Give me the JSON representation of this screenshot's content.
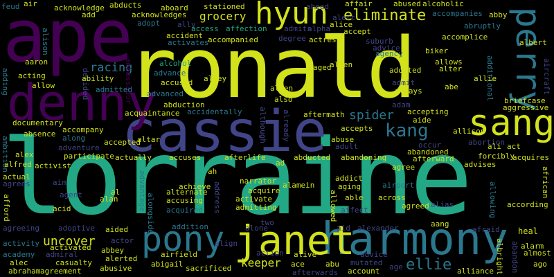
{
  "colors": {
    "background": "#000000",
    "lime": "#d2e21b",
    "green": "#22a884",
    "teal": "#2a788e",
    "blue": "#414487",
    "purple": "#440154",
    "navy": "#2a2a6c"
  },
  "words": {
    "lorraine": "lorraine",
    "ronald": "ronald",
    "ape": "ape",
    "cassie": "cassie",
    "denny": "denny",
    "harmony": "harmony",
    "janet": "janet",
    "pony": "pony",
    "hyun": "hyun",
    "sang": "sang",
    "perry": "perry",
    "kang": "kang",
    "eliminate": "eliminate",
    "spider": "spider",
    "uncover": "uncover",
    "racing": "racing",
    "grocery": "grocery",
    "keeper": "keeper",
    "ellie": "ellie",
    "acknowledge": "acknowledge",
    "acknowledges": "acknowledges",
    "add": "add",
    "abducts": "abducts",
    "aboard": "aboard",
    "stationed": "stationed",
    "ahead": "ahead",
    "affair": "affair",
    "abused": "abused",
    "alcoholic": "alcoholic",
    "accompanies": "accompanies",
    "abby": "abby",
    "feud": "feud",
    "air": "air",
    "adopt": "adopt",
    "ally": "ally",
    "accident": "accident",
    "activates": "activates",
    "access": "access",
    "affection": "affection",
    "accompanied": "accompanied",
    "admits": "admits",
    "alpha": "alpha",
    "degree": "degree",
    "actress": "actress",
    "alert": "alert",
    "alice": "alice",
    "accept": "accept",
    "suburb": "suburb",
    "advice": "advice",
    "agency": "agency",
    "abruptly": "abruptly",
    "accomplice": "accomplice",
    "albert": "albert",
    "biker": "biker",
    "allows": "allows",
    "alter": "alter",
    "additional": "additional",
    "aircraft": "aircraft",
    "alison": "alison",
    "aaron": "aaron",
    "acting": "acting",
    "allow": "allow",
    "adding": "adding",
    "ambassador": "ambassador",
    "alcohol": "alcohol",
    "advance": "advance",
    "accused": "accused",
    "advanced": "advanced",
    "alley": "alley",
    "ability": "ability",
    "admitted": "admitted",
    "decided": "decided",
    "aged": "aged",
    "allen": "allen",
    "adopted": "adopted",
    "admit": "admit",
    "always": "always",
    "allie": "allie",
    "abe": "abe",
    "briefcase": "briefcase",
    "aggressive": "aggressive",
    "abduction": "abduction",
    "acquaintance": "acquaintance",
    "accidentally": "accidentally",
    "alien": "alien",
    "also": "also",
    "although": "although",
    "already": "already",
    "aftermath": "aftermath",
    "adam": "adam",
    "accepting": "accepting",
    "aide": "aide",
    "allison": "allison",
    "documentary": "documentary",
    "absence": "absence",
    "accompany": "accompany",
    "along": "along",
    "adventure": "adventure",
    "accepted": "accepted",
    "altar": "altar",
    "abuse": "abuse",
    "accepts": "accepts",
    "adult": "adult",
    "abandoned": "abandoned",
    "occur": "occur",
    "abortion": "abortion",
    "ali": "ali",
    "act": "act",
    "ambition": "ambition",
    "alex": "alex",
    "alfred": "alfred",
    "activist": "activist",
    "participate": "participate",
    "actually": "actually",
    "accuses": "accuses",
    "afterlife": "afterlife",
    "ad": "ad",
    "abducted": "abducted",
    "abandoning": "abandoning",
    "agree": "agree",
    "afterward": "afterward",
    "forcibly": "forcibly",
    "advises": "advises",
    "acquires": "acquires",
    "african": "african",
    "actual": "actual",
    "agrees": "agrees",
    "aim": "aim",
    "agent": "agent",
    "al": "al",
    "alan": "alan",
    "advantage": "advantage",
    "alongside": "alongside",
    "achieve": "achieve",
    "alternate": "alternate",
    "ah": "ah",
    "narrator": "narrator",
    "alamein": "alamein",
    "address": "address",
    "addict": "addict",
    "aging": "aging",
    "airport": "airport",
    "accusing": "accusing",
    "activate": "activate",
    "acquire": "acquire",
    "allowed": "allowed",
    "able": "able",
    "across": "across",
    "alias": "alias",
    "allowing": "allowing",
    "according": "according",
    "afford": "afford",
    "acid": "acid",
    "acquired": "acquired",
    "admitting": "admitting",
    "affect": "affect",
    "agreed": "agreed",
    "agreeing": "agreeing",
    "adoptive": "adoptive",
    "aided": "aided",
    "addition": "addition",
    "two": "two",
    "alone": "alone",
    "aid": "aid",
    "alexander": "alexander",
    "aang": "aang",
    "afraid": "afraid",
    "heal": "heal",
    "activity": "activity",
    "activated": "activated",
    "actor": "actor",
    "align": "align",
    "action": "action",
    "academy": "academy",
    "admiral": "admiral",
    "abbey": "abbey",
    "alec": "alec",
    "casualty": "casualty",
    "alerted": "alerted",
    "airfield": "airfield",
    "alive": "alive",
    "mutated": "mutated",
    "advice2": "advice",
    "albright": "albright",
    "abandon": "abandon",
    "alarm": "alarm",
    "almost": "almost",
    "abraham": "abraham",
    "agreement": "agreement",
    "abusive": "abusive",
    "abigail": "abigail",
    "sacrificed": "sacrificed",
    "ace": "ace",
    "abu": "abu",
    "account": "account",
    "age": "age",
    "alliance": "alliance",
    "ago": "ago",
    "afterwards": "afterwards"
  }
}
